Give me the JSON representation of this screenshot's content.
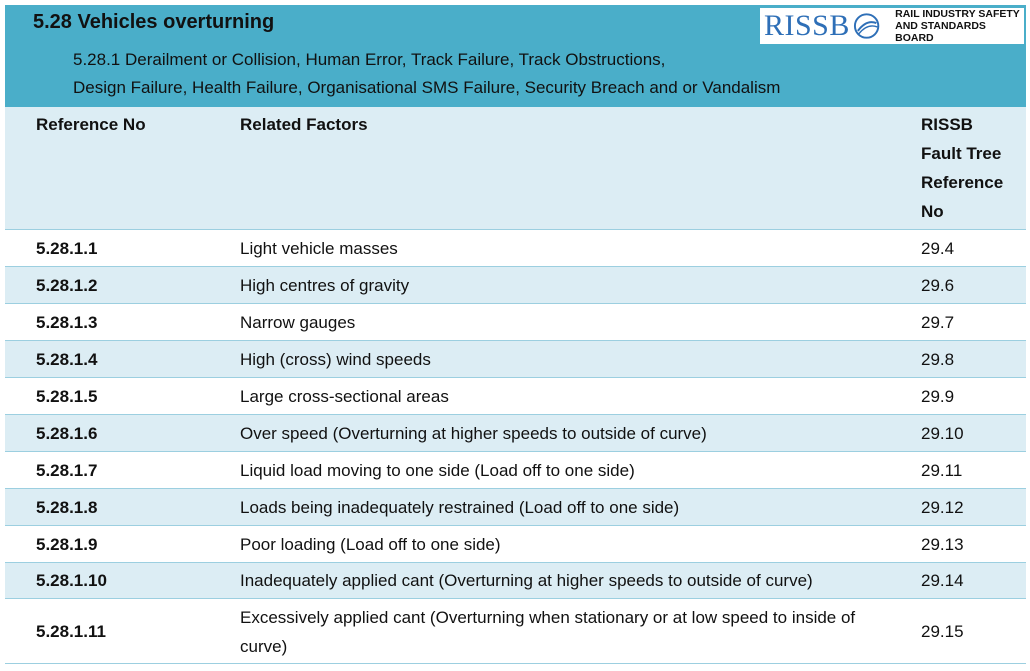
{
  "header": {
    "title": "5.28 Vehicles overturning",
    "subtitle_line1": "5.28.1 Derailment or   Collision, Human Error, Track Failure, Track Obstructions,",
    "subtitle_line2": "Design Failure, Health Failure, Organisational SMS Failure, Security Breach and or Vandalism",
    "logo": {
      "wordmark": "RISSB",
      "line1": "RAIL INDUSTRY SAFETY",
      "line2": "AND STANDARDS BOARD",
      "brand_color": "#2e6fb7"
    },
    "banner_color": "#4aaec9"
  },
  "table": {
    "columns": {
      "ref": "Reference No",
      "factors": "Related Factors",
      "rissb_line1": "RISSB",
      "rissb_line2": "Fault Tree",
      "rissb_line3": "Reference",
      "rissb_line4": "No"
    },
    "rows": [
      {
        "ref": "5.28.1.1",
        "factor": "Light vehicle masses",
        "rissb": "29.4"
      },
      {
        "ref": "5.28.1.2",
        "factor": "High centres of gravity",
        "rissb": "29.6"
      },
      {
        "ref": "5.28.1.3",
        "factor": "Narrow gauges",
        "rissb": "29.7"
      },
      {
        "ref": "5.28.1.4",
        "factor": "High (cross) wind speeds",
        "rissb": "29.8"
      },
      {
        "ref": "5.28.1.5",
        "factor": "Large cross-sectional areas",
        "rissb": "29.9"
      },
      {
        "ref": "5.28.1.6",
        "factor": "Over speed (Overturning at higher speeds to outside of curve)",
        "rissb": "29.10"
      },
      {
        "ref": "5.28.1.7",
        "factor": "Liquid load moving to one side  (Load off to one side)",
        "rissb": "29.11"
      },
      {
        "ref": "5.28.1.8",
        "factor": "Loads being inadequately restrained (Load off to one side)",
        "rissb": "29.12"
      },
      {
        "ref": "5.28.1.9",
        "factor": "Poor loading (Load off to one side)",
        "rissb": "29.13"
      },
      {
        "ref": "5.28.1.10",
        "factor": "Inadequately applied cant (Overturning at higher speeds to outside of curve)",
        "rissb": "29.14"
      },
      {
        "ref": "5.28.1.11",
        "factor": "Excessively applied cant (Overturning when stationary or at low speed to inside of curve)",
        "rissb": "29.15"
      }
    ],
    "row_fill_color": "#dcedf4",
    "border_color": "#9ccfe0"
  }
}
